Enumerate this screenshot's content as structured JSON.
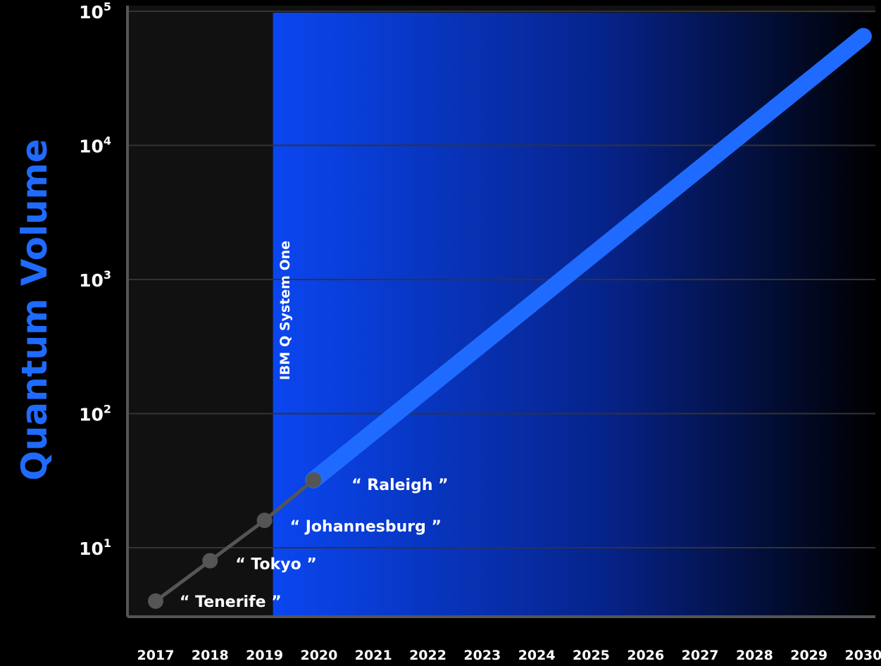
{
  "chart_data": {
    "type": "line",
    "ylabel": "Quantum Volume",
    "xlabel": "",
    "y_scale": "log",
    "ylim": [
      3.7,
      100000
    ],
    "xlim": [
      2017,
      2030
    ],
    "x_ticks": [
      "2017",
      "2018",
      "2019",
      "2020",
      "2021",
      "2022",
      "2023",
      "2024",
      "2025",
      "2026",
      "2027",
      "2028",
      "2029",
      "2030"
    ],
    "y_ticks": [
      {
        "base": "10",
        "exp": "1",
        "value": 10
      },
      {
        "base": "10",
        "exp": "2",
        "value": 100
      },
      {
        "base": "10",
        "exp": "3",
        "value": 1000
      },
      {
        "base": "10",
        "exp": "4",
        "value": 10000
      },
      {
        "base": "10",
        "exp": "5",
        "value": 100000
      }
    ],
    "grid": true,
    "series": [
      {
        "style": "measured",
        "color": "#555555",
        "points": [
          {
            "x": 2017.0,
            "y": 4,
            "label": "“ Tenerife ”"
          },
          {
            "x": 2018.0,
            "y": 8,
            "label": "“ Tokyo ”"
          },
          {
            "x": 2019.0,
            "y": 16,
            "label": "“ Johannesburg ”"
          },
          {
            "x": 2019.9,
            "y": 32,
            "label": "“ Raleigh ”"
          }
        ]
      },
      {
        "style": "projection",
        "color": "#1f6bff",
        "points": [
          {
            "x": 2019.9,
            "y": 32
          },
          {
            "x": 2030.0,
            "y": 65000
          }
        ]
      }
    ],
    "region": {
      "label": "IBM Q System One",
      "x_start": 2019,
      "x_end": 2030,
      "color_start": "#0a46f0",
      "color_end": "#000000"
    },
    "colors": {
      "background": "#000000",
      "plot_background": "#111111",
      "ylabel": "#1f6bff",
      "tick_text": "#ffffff",
      "grid": "#333333",
      "axis": "#555555"
    }
  }
}
